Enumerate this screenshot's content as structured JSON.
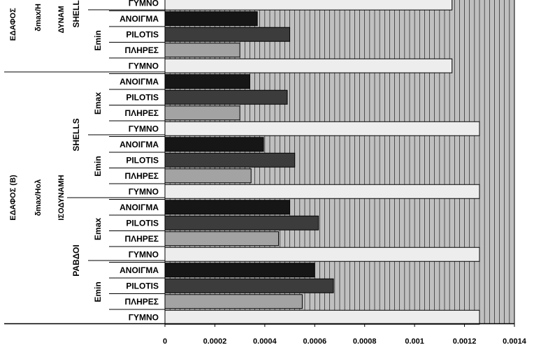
{
  "chart_data": {
    "type": "bar",
    "orientation": "horizontal",
    "xlim": [
      0,
      0.0014
    ],
    "x_ticks": [
      "0",
      "0.0002",
      "0.0004",
      "0.0006",
      "0.0008",
      "0.001",
      "0.0012",
      "0.0014"
    ],
    "bars": [
      {
        "label": "ΓΥΜΝΟ",
        "value": 0.00115,
        "color": "#ededed"
      },
      {
        "label": "ΑΝΟΙΓΜΑ",
        "value": 0.00037,
        "color": "#161616"
      },
      {
        "label": "PILOTIS",
        "value": 0.0005,
        "color": "#3c3c3c"
      },
      {
        "label": "ΠΛΗΡΕΣ",
        "value": 0.0003,
        "color": "#a3a3a3"
      },
      {
        "label": "ΓΥΜΝΟ",
        "value": 0.00115,
        "color": "#ededed"
      },
      {
        "label": "ΑΝΟΙΓΜΑ",
        "value": 0.00034,
        "color": "#161616"
      },
      {
        "label": "PILOTIS",
        "value": 0.00049,
        "color": "#3c3c3c"
      },
      {
        "label": "ΠΛΗΡΕΣ",
        "value": 0.0003,
        "color": "#a3a3a3"
      },
      {
        "label": "ΓΥΜΝΟ",
        "value": 0.00126,
        "color": "#ededed"
      },
      {
        "label": "ΑΝΟΙΓΜΑ",
        "value": 0.000395,
        "color": "#161616"
      },
      {
        "label": "PILOTIS",
        "value": 0.00052,
        "color": "#3c3c3c"
      },
      {
        "label": "ΠΛΗΡΕΣ",
        "value": 0.000345,
        "color": "#a3a3a3"
      },
      {
        "label": "ΓΥΜΝΟ",
        "value": 0.00126,
        "color": "#ededed"
      },
      {
        "label": "ΑΝΟΙΓΜΑ",
        "value": 0.0005,
        "color": "#161616"
      },
      {
        "label": "PILOTIS",
        "value": 0.000615,
        "color": "#3c3c3c"
      },
      {
        "label": "ΠΛΗΡΕΣ",
        "value": 0.000455,
        "color": "#a3a3a3"
      },
      {
        "label": "ΓΥΜΝΟ",
        "value": 0.00126,
        "color": "#ededed"
      },
      {
        "label": "ΑΝΟΙΓΜΑ",
        "value": 0.0006,
        "color": "#161616"
      },
      {
        "label": "PILOTIS",
        "value": 0.000675,
        "color": "#3c3c3c"
      },
      {
        "label": "ΠΛΗΡΕΣ",
        "value": 0.00055,
        "color": "#a3a3a3"
      },
      {
        "label": "ΓΥΜΝΟ",
        "value": 0.00126,
        "color": "#ededed"
      }
    ],
    "group_labels": {
      "soil_upper": "ΕΔΑΦΟΣ",
      "ratio_upper": "δmax/Η",
      "method_upper": "ΔΥΝΑΜ",
      "model_upper": "SHELL",
      "emin": "Emin",
      "emax": "Emax",
      "shells": "SHELLS",
      "rods": "ΡΑΒΔΟΙ",
      "soil": "ΕΔΑΦΟΣ (Β)",
      "ratio": "δmax/Ηολ",
      "method": "ΙΣΟΔΥΝΑΜΗ"
    },
    "colors": {
      "plot_bg": "#c0c0c0",
      "grid": "#000000"
    }
  }
}
